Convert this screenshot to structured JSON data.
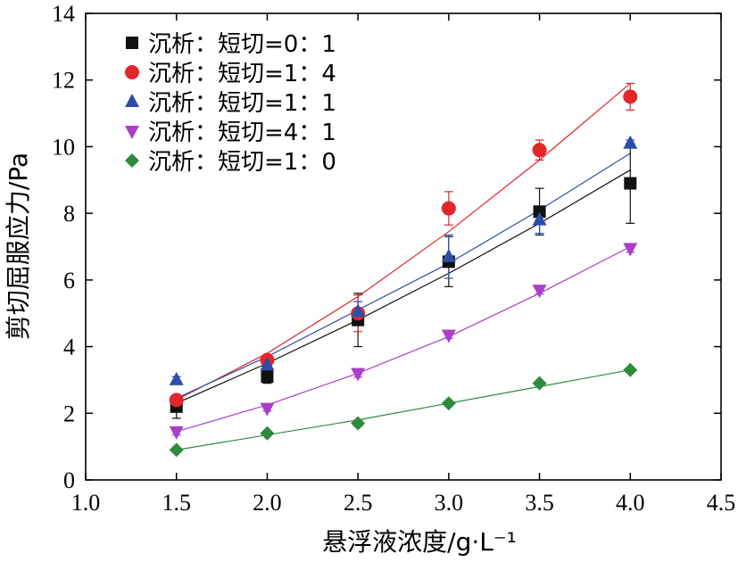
{
  "chart_data": {
    "type": "scatter",
    "xlabel": "悬浮液浓度/g·L⁻¹",
    "ylabel": "剪切屈服应力/Pa",
    "xlim": [
      1.0,
      4.5
    ],
    "ylim": [
      0,
      14
    ],
    "xticks": [
      "1.0",
      "1.5",
      "2.0",
      "2.5",
      "3.0",
      "3.5",
      "4.0",
      "4.5"
    ],
    "yticks": [
      "0",
      "2",
      "4",
      "6",
      "8",
      "10",
      "12",
      "14"
    ],
    "grid": false,
    "legend_position": "top-left",
    "x": [
      1.5,
      2.0,
      2.5,
      3.0,
      3.5,
      4.0
    ],
    "series": [
      {
        "name": "沉析：短切=0：1",
        "color": "#111111",
        "marker": "square",
        "values": [
          2.2,
          3.1,
          4.8,
          6.55,
          8.05,
          8.9
        ],
        "errors": [
          0.35,
          0.2,
          0.8,
          0.75,
          0.7,
          1.2
        ],
        "fit": [
          2.3,
          3.5,
          4.8,
          6.2,
          7.7,
          9.3
        ]
      },
      {
        "name": "沉析：短切=1：4",
        "color": "#e3262b",
        "marker": "circle",
        "values": [
          2.4,
          3.6,
          5.0,
          8.15,
          9.9,
          11.5
        ],
        "errors": [
          0.15,
          0.1,
          0.55,
          0.5,
          0.3,
          0.4
        ],
        "fit": [
          2.4,
          3.8,
          5.5,
          7.45,
          9.6,
          11.9
        ]
      },
      {
        "name": "沉析：短切=1：1",
        "color": "#2b4fa8",
        "marker": "triangle-up",
        "values": [
          3.0,
          3.45,
          5.05,
          6.7,
          7.8,
          10.1
        ],
        "errors": [
          0.1,
          0.15,
          0.3,
          0.65,
          0.4,
          0.1
        ],
        "fit": [
          2.45,
          3.7,
          5.1,
          6.5,
          8.1,
          9.8
        ]
      },
      {
        "name": "沉析：短切=4：1",
        "color": "#a93fc8",
        "marker": "triangle-down",
        "values": [
          1.45,
          2.15,
          3.2,
          4.35,
          5.7,
          6.95
        ],
        "errors": [
          0.1,
          0.08,
          0.12,
          0.1,
          0.12,
          0.12
        ],
        "fit": [
          1.45,
          2.25,
          3.2,
          4.3,
          5.6,
          7.0
        ]
      },
      {
        "name": "沉析：短切=1：0",
        "color": "#2e8b3d",
        "marker": "diamond",
        "values": [
          0.9,
          1.4,
          1.7,
          2.3,
          2.9,
          3.3
        ],
        "errors": [
          0.05,
          0.05,
          0.08,
          0.06,
          0.06,
          0.05
        ],
        "fit": [
          0.9,
          1.35,
          1.8,
          2.3,
          2.8,
          3.3
        ]
      }
    ]
  }
}
